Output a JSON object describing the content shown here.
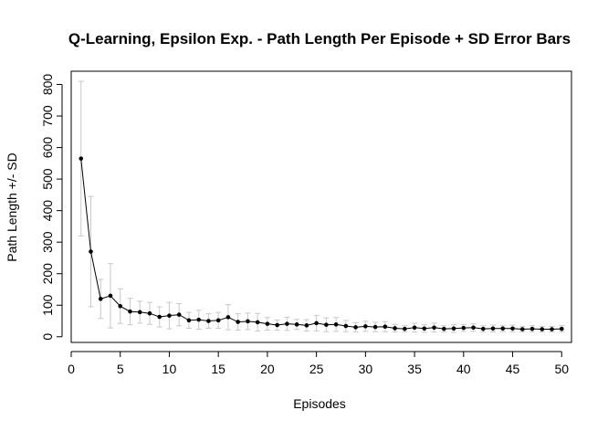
{
  "chart_data": {
    "type": "line",
    "title": "Q-Learning, Epsilon Exp. - Path Length Per Episode + SD Error Bars",
    "xlabel": "Episodes",
    "ylabel": "Path Length +/- SD",
    "xlim": [
      0,
      51
    ],
    "ylim": [
      -18,
      842
    ],
    "x_ticks": [
      "0",
      "5",
      "10",
      "15",
      "20",
      "25",
      "30",
      "35",
      "40",
      "45",
      "50"
    ],
    "y_ticks": [
      "0",
      "100",
      "200",
      "300",
      "400",
      "500",
      "600",
      "700",
      "800"
    ],
    "grid": false,
    "colors": {
      "line": "#000000",
      "error_bar": "#c8c8c8"
    },
    "series": [
      {
        "x": [
          1,
          2,
          3,
          4,
          5,
          6,
          7,
          8,
          9,
          10,
          11,
          12,
          13,
          14,
          15,
          16,
          17,
          18,
          19,
          20,
          21,
          22,
          23,
          24,
          25,
          26,
          27,
          28,
          29,
          30,
          31,
          32,
          33,
          34,
          35,
          36,
          37,
          38,
          39,
          40,
          41,
          42,
          43,
          44,
          45,
          46,
          47,
          48,
          49,
          50
        ],
        "y": [
          565,
          270,
          120,
          130,
          97,
          80,
          78,
          74,
          63,
          67,
          70,
          52,
          54,
          50,
          52,
          62,
          47,
          49,
          46,
          41,
          37,
          41,
          39,
          36,
          43,
          38,
          39,
          34,
          30,
          33,
          31,
          32,
          27,
          25,
          29,
          26,
          29,
          25,
          26,
          28,
          29,
          25,
          26,
          26,
          26,
          24,
          25,
          24,
          24,
          25
        ],
        "sd": [
          245,
          175,
          62,
          102,
          55,
          42,
          35,
          35,
          32,
          42,
          35,
          25,
          30,
          23,
          25,
          40,
          26,
          26,
          28,
          20,
          16,
          21,
          16,
          18,
          25,
          22,
          22,
          18,
          15,
          16,
          15,
          16,
          12,
          10,
          14,
          12,
          14,
          10,
          12,
          11,
          12,
          10,
          11,
          10,
          11,
          9,
          10,
          9,
          9,
          10
        ]
      }
    ]
  }
}
